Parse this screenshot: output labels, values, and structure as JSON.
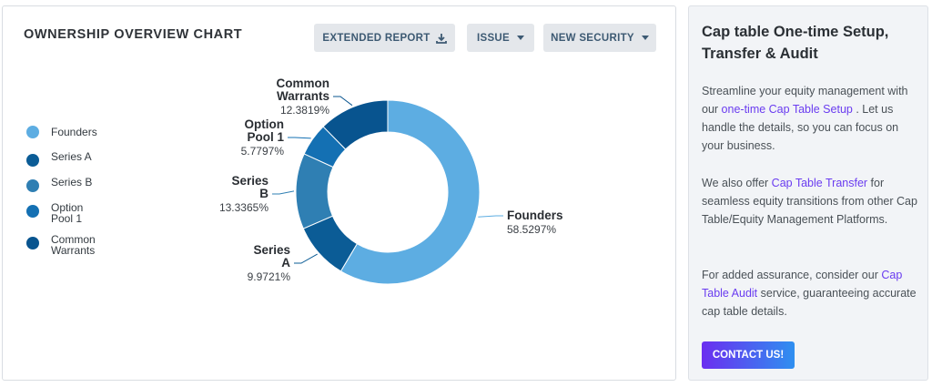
{
  "chart_card": {
    "title": "OWNERSHIP OVERVIEW CHART",
    "buttons": {
      "extended_report": "EXTENDED REPORT",
      "issue": "ISSUE",
      "new_security": "NEW SECURITY"
    }
  },
  "legend": [
    {
      "label": "Founders",
      "color": "#5dade2"
    },
    {
      "label": "Series A",
      "color": "#0b5c96"
    },
    {
      "label": "Series B",
      "color": "#2f7fb3"
    },
    {
      "label": "Option Pool 1",
      "color": "#1470b3"
    },
    {
      "label": "Common Warrants",
      "color": "#08548f"
    }
  ],
  "chart_data": {
    "type": "pie",
    "donut": true,
    "title": "OWNERSHIP OVERVIEW CHART",
    "categories": [
      "Founders",
      "Series A",
      "Series B",
      "Option Pool 1",
      "Common Warrants"
    ],
    "values": [
      58.5297,
      9.9721,
      13.3365,
      5.7797,
      12.3819
    ],
    "value_labels": [
      "58.5297%",
      "9.9721%",
      "13.3365%",
      "5.7797%",
      "12.3819%"
    ],
    "slice_labels": [
      [
        "Founders"
      ],
      [
        "Series",
        "A"
      ],
      [
        "Series",
        "B"
      ],
      [
        "Option",
        "Pool 1"
      ],
      [
        "Common",
        "Warrants"
      ]
    ],
    "colors": [
      "#5dade2",
      "#0b5c96",
      "#2f7fb3",
      "#1470b3",
      "#08548f"
    ],
    "legend_position": "left"
  },
  "side_card": {
    "title": "Cap table One-time Setup, Transfer & Audit",
    "p1": {
      "before": "Streamline your equity management with our ",
      "link": "one-time Cap Table Setup",
      "after": " . Let us handle the details, so you can focus on your business."
    },
    "p2": {
      "before": "We also offer ",
      "link": "Cap Table Transfer",
      "after": " for seamless equity transitions from other Cap Table/Equity Management Platforms."
    },
    "p3": {
      "before": "For added assurance, consider our ",
      "link": "Cap Table Audit",
      "after": " service, guaranteeing accurate cap table details."
    },
    "contact_button": "CONTACT US!"
  }
}
